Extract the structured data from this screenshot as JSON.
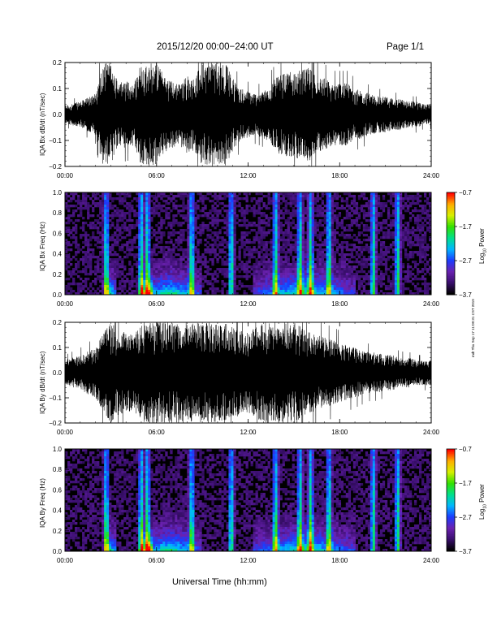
{
  "header": {
    "title": "2015/12/20   00:00−24:00 UT",
    "page": "Page 1/1"
  },
  "stamp": "mdt Thu Sep 17 11:09:31 CST 2019",
  "x_axis": {
    "title": "Universal Time (hh:mm)",
    "ticks": [
      "00:00",
      "06:00",
      "12:00",
      "18:00",
      "24:00"
    ]
  },
  "colors": {
    "trace": "#000000",
    "spectrogram_bg": "#000000",
    "colormap": [
      "#000000",
      "#3a0f6e",
      "#6a21b0",
      "#1a3cff",
      "#00b7ff",
      "#00e08a",
      "#33e000",
      "#d6f000",
      "#ffae00",
      "#ff0000"
    ]
  },
  "chart_data": [
    {
      "type": "line",
      "panel": "time-series",
      "ylabel": "IQA Bx dB/dt (nT/sec)",
      "yticks": [
        "0.2",
        "0.1",
        "0.0",
        "−0.1",
        "−0.2"
      ],
      "ylim": [
        -0.2,
        0.2
      ],
      "xlim_hours": [
        0,
        24
      ],
      "grid": false,
      "series": [
        {
          "x_hours": [
            0,
            1,
            2,
            2.5,
            3,
            3.5,
            4,
            4.5,
            5,
            5.5,
            6,
            6.5,
            7,
            7.5,
            8,
            8.5,
            9,
            9.5,
            10,
            10.5,
            11,
            11.5,
            12,
            12.5,
            13,
            13.5,
            14,
            14.5,
            15,
            15.5,
            16,
            16.5,
            17,
            17.5,
            18,
            18.5,
            19,
            19.5,
            20,
            20.5,
            21,
            21.5,
            22,
            22.5,
            23,
            23.5,
            24
          ],
          "envelope_amplitude": [
            0.035,
            0.05,
            0.08,
            0.2,
            0.2,
            0.12,
            0.13,
            0.12,
            0.2,
            0.2,
            0.2,
            0.15,
            0.13,
            0.12,
            0.15,
            0.14,
            0.2,
            0.2,
            0.2,
            0.2,
            0.14,
            0.1,
            0.09,
            0.08,
            0.09,
            0.12,
            0.15,
            0.16,
            0.17,
            0.17,
            0.18,
            0.15,
            0.14,
            0.12,
            0.12,
            0.12,
            0.1,
            0.09,
            0.08,
            0.07,
            0.07,
            0.06,
            0.06,
            0.05,
            0.05,
            0.04,
            0.04
          ]
        }
      ]
    },
    {
      "type": "heatmap",
      "panel": "spectrogram",
      "ylabel": "IQA Bx Freq (Hz)",
      "yticks": [
        "1.0",
        "0.8",
        "0.6",
        "0.4",
        "0.2",
        "0.0"
      ],
      "ylim": [
        0,
        1.0
      ],
      "xlim_hours": [
        0,
        24
      ],
      "colorbar": {
        "label": "Log10 Power",
        "ticks": [
          "−0.7",
          "−1.7",
          "−2.7",
          "−3.7"
        ],
        "range": [
          -3.7,
          -0.7
        ]
      },
      "bright_bands_hours": [
        2.7,
        5.0,
        5.4,
        8.3,
        10.9,
        13.8,
        15.4,
        16.1,
        17.3,
        20.2,
        21.8
      ],
      "low_freq_enhancement_hours": [
        [
          2.5,
          3.4
        ],
        [
          4.8,
          9.0
        ],
        [
          12.3,
          19.0
        ]
      ]
    },
    {
      "type": "line",
      "panel": "time-series",
      "ylabel": "IQA By dB/dt (nT/sec)",
      "yticks": [
        "0.2",
        "0.1",
        "0.0",
        "−0.1",
        "−0.2"
      ],
      "ylim": [
        -0.2,
        0.2
      ],
      "xlim_hours": [
        0,
        24
      ],
      "grid": false,
      "series": [
        {
          "x_hours": [
            0,
            1,
            2,
            2.5,
            3,
            3.5,
            4,
            4.5,
            5,
            5.5,
            6,
            6.5,
            7,
            7.5,
            8,
            8.5,
            9,
            9.5,
            10,
            10.5,
            11,
            11.5,
            12,
            12.5,
            13,
            13.5,
            14,
            14.5,
            15,
            15.5,
            16,
            16.5,
            17,
            17.5,
            18,
            18.5,
            19,
            19.5,
            20,
            20.5,
            21,
            21.5,
            22,
            22.5,
            23,
            23.5,
            24
          ],
          "envelope_amplitude": [
            0.05,
            0.07,
            0.1,
            0.16,
            0.2,
            0.17,
            0.16,
            0.15,
            0.2,
            0.2,
            0.2,
            0.2,
            0.2,
            0.2,
            0.2,
            0.2,
            0.2,
            0.2,
            0.2,
            0.2,
            0.18,
            0.17,
            0.16,
            0.18,
            0.2,
            0.2,
            0.2,
            0.2,
            0.2,
            0.18,
            0.16,
            0.15,
            0.14,
            0.13,
            0.12,
            0.11,
            0.1,
            0.09,
            0.08,
            0.08,
            0.07,
            0.07,
            0.06,
            0.06,
            0.05,
            0.05,
            0.05
          ]
        }
      ]
    },
    {
      "type": "heatmap",
      "panel": "spectrogram",
      "ylabel": "IQA By Freq (Hz)",
      "yticks": [
        "1.0",
        "0.8",
        "0.6",
        "0.4",
        "0.2",
        "0.0"
      ],
      "ylim": [
        0,
        1.0
      ],
      "xlim_hours": [
        0,
        24
      ],
      "colorbar": {
        "label": "Log10 Power",
        "ticks": [
          "−0.7",
          "−1.7",
          "−2.7",
          "−3.7"
        ],
        "range": [
          -3.7,
          -0.7
        ]
      },
      "bright_bands_hours": [
        2.7,
        5.0,
        5.4,
        8.3,
        10.9,
        13.8,
        15.4,
        16.1,
        17.3,
        20.2,
        21.8
      ],
      "low_freq_enhancement_hours": [
        [
          2.5,
          3.4
        ],
        [
          4.8,
          9.0
        ],
        [
          12.3,
          19.0
        ]
      ]
    }
  ]
}
